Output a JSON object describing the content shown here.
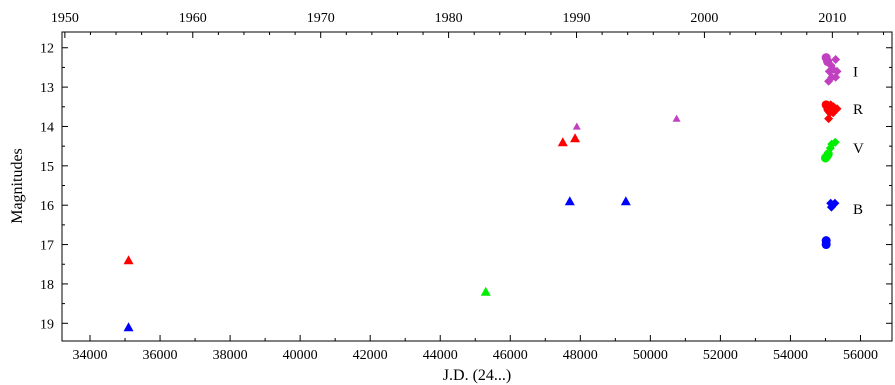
{
  "chart_data": {
    "type": "scatter",
    "title": "",
    "xlabel": "J.D. (24...)",
    "ylabel": "Magnitudes",
    "x_unit": "J.D. (24...)",
    "xlim": [
      33200,
      56900
    ],
    "ylim": [
      19.45,
      11.6
    ],
    "y_inverted": true,
    "x_ticks": [
      34000,
      36000,
      38000,
      40000,
      42000,
      44000,
      46000,
      48000,
      50000,
      52000,
      54000,
      56000
    ],
    "y_ticks": [
      12,
      13,
      14,
      15,
      16,
      17,
      18,
      19
    ],
    "top_axis": {
      "ticks": [
        1950,
        1960,
        1970,
        1980,
        1990,
        2000,
        2010
      ],
      "year_ticks_at_jd": [
        33282,
        36934,
        40587,
        44239,
        47892,
        51544,
        55197
      ]
    },
    "grid": false,
    "band_labels": [
      {
        "text": "I",
        "y": 12.6
      },
      {
        "text": "R",
        "y": 13.55
      },
      {
        "text": "V",
        "y": 14.55
      },
      {
        "text": "B",
        "y": 16.1
      }
    ],
    "series": [
      {
        "color": "#c040c0",
        "points": [
          {
            "x": 47900,
            "y": 14.0,
            "marker": "triangle-small"
          },
          {
            "x": 50750,
            "y": 13.8,
            "marker": "triangle-small"
          },
          {
            "x": 55020,
            "y": 12.25,
            "marker": "circle"
          },
          {
            "x": 55060,
            "y": 12.35,
            "marker": "circle"
          },
          {
            "x": 55160,
            "y": 12.45,
            "marker": "diamond"
          },
          {
            "x": 55290,
            "y": 12.3,
            "marker": "diamond"
          },
          {
            "x": 55110,
            "y": 12.6,
            "marker": "diamond"
          },
          {
            "x": 55220,
            "y": 12.55,
            "marker": "diamond"
          },
          {
            "x": 55330,
            "y": 12.6,
            "marker": "diamond"
          },
          {
            "x": 55180,
            "y": 12.75,
            "marker": "diamond"
          },
          {
            "x": 55290,
            "y": 12.75,
            "marker": "diamond"
          },
          {
            "x": 55090,
            "y": 12.85,
            "marker": "diamond"
          }
        ]
      },
      {
        "color": "#ff0000",
        "points": [
          {
            "x": 35100,
            "y": 17.4,
            "marker": "triangle"
          },
          {
            "x": 47500,
            "y": 14.4,
            "marker": "triangle"
          },
          {
            "x": 47850,
            "y": 14.3,
            "marker": "triangle"
          },
          {
            "x": 55020,
            "y": 13.45,
            "marker": "circle"
          },
          {
            "x": 55070,
            "y": 13.55,
            "marker": "circle"
          },
          {
            "x": 55150,
            "y": 13.45,
            "marker": "diamond"
          },
          {
            "x": 55230,
            "y": 13.5,
            "marker": "diamond"
          },
          {
            "x": 55330,
            "y": 13.55,
            "marker": "diamond"
          },
          {
            "x": 55120,
            "y": 13.65,
            "marker": "diamond"
          },
          {
            "x": 55220,
            "y": 13.65,
            "marker": "diamond"
          },
          {
            "x": 55090,
            "y": 13.8,
            "marker": "diamond"
          }
        ]
      },
      {
        "color": "#00ee00",
        "points": [
          {
            "x": 45300,
            "y": 18.2,
            "marker": "triangle"
          },
          {
            "x": 55050,
            "y": 14.75,
            "marker": "circle"
          },
          {
            "x": 55000,
            "y": 14.8,
            "marker": "circle"
          },
          {
            "x": 55080,
            "y": 14.7,
            "marker": "circle"
          },
          {
            "x": 55180,
            "y": 14.45,
            "marker": "diamond"
          },
          {
            "x": 55280,
            "y": 14.4,
            "marker": "diamond"
          },
          {
            "x": 55140,
            "y": 14.55,
            "marker": "diamond"
          }
        ]
      },
      {
        "color": "#0000ff",
        "points": [
          {
            "x": 35100,
            "y": 19.1,
            "marker": "triangle"
          },
          {
            "x": 47700,
            "y": 15.9,
            "marker": "triangle"
          },
          {
            "x": 49300,
            "y": 15.9,
            "marker": "triangle"
          },
          {
            "x": 55020,
            "y": 16.9,
            "marker": "circle"
          },
          {
            "x": 55020,
            "y": 17.0,
            "marker": "circle"
          },
          {
            "x": 55150,
            "y": 15.95,
            "marker": "diamond"
          },
          {
            "x": 55270,
            "y": 15.95,
            "marker": "diamond"
          },
          {
            "x": 55170,
            "y": 16.05,
            "marker": "diamond"
          }
        ]
      }
    ]
  }
}
